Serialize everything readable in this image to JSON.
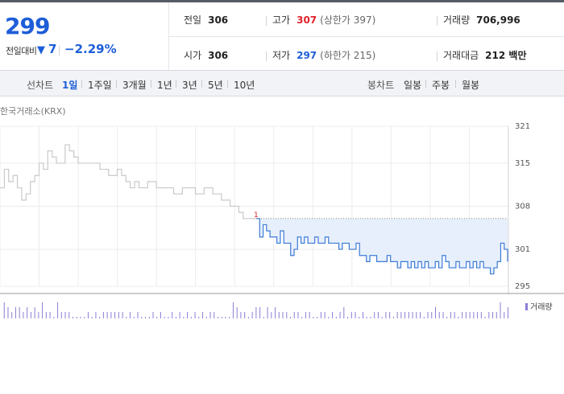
{
  "quote": {
    "price": "299",
    "compare_label": "전일대비",
    "change": "7",
    "change_rate": "−2.29%",
    "prev_close_label": "전일",
    "prev_close": "306",
    "high_label": "고가",
    "high": "307",
    "upper_limit": "(상한가 397)",
    "volume_label": "거래량",
    "volume": "706,996",
    "open_label": "시가",
    "open": "306",
    "low_label": "저가",
    "low": "297",
    "lower_limit": "(하한가 215)",
    "value_label": "거래대금",
    "value": "212 백만"
  },
  "tabs": {
    "line_head": "선차트",
    "line": [
      "1일",
      "1주일",
      "3개월",
      "1년",
      "3년",
      "5년",
      "10년"
    ],
    "candle_head": "봉차트",
    "candle": [
      "일봉",
      "주봉",
      "월봉"
    ]
  },
  "source": "한국거래소(KRX)",
  "chart_data": {
    "type": "line",
    "ylim": [
      295,
      321
    ],
    "yticks": [
      "321",
      "315",
      "308",
      "301",
      "295"
    ],
    "prev_close": 306,
    "open_marker": "1",
    "legend": "거래량",
    "colors": {
      "prior": "#c9c9c9",
      "today": "#3d7ad6",
      "fill": "#e6effb",
      "volume": "#8a7fd6"
    },
    "prior_series": [
      311,
      314,
      312,
      313,
      311,
      309,
      310,
      312,
      313,
      315,
      314,
      317,
      316,
      315,
      315,
      318,
      317,
      316,
      315,
      315,
      315,
      315,
      315,
      314,
      314,
      313,
      313,
      314,
      313,
      312,
      311,
      312,
      311,
      311,
      312,
      312,
      311,
      311,
      311,
      311,
      310,
      310,
      311,
      311,
      311,
      310,
      310,
      311,
      311,
      310,
      310,
      309,
      309,
      308,
      308,
      307,
      306,
      306,
      306,
      306
    ],
    "today_series": [
      306,
      303,
      305,
      304,
      303,
      303,
      302,
      304,
      302,
      302,
      300,
      301,
      303,
      302,
      303,
      302,
      302,
      303,
      302,
      302,
      303,
      302,
      302,
      302,
      301,
      302,
      302,
      301,
      301,
      302,
      300,
      300,
      299,
      300,
      300,
      299,
      299,
      299,
      300,
      299,
      299,
      298,
      299,
      299,
      298,
      299,
      298,
      299,
      298,
      299,
      298,
      298,
      299,
      298,
      300,
      299,
      298,
      298,
      299,
      298,
      298,
      299,
      298,
      299,
      298,
      299,
      298,
      298,
      297,
      298,
      299,
      302,
      301,
      299
    ]
  }
}
